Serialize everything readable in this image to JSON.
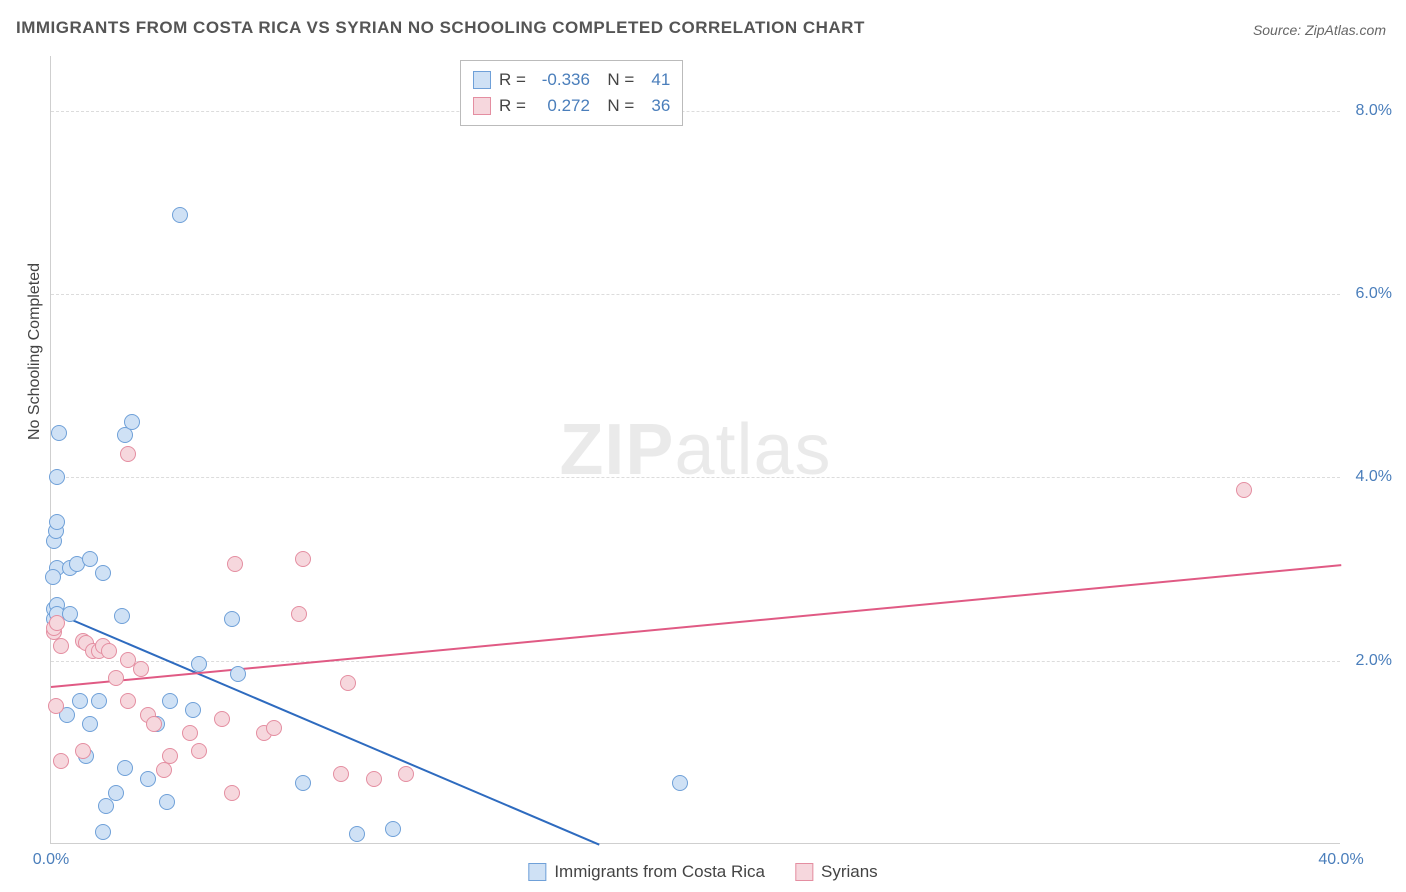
{
  "title": "IMMIGRANTS FROM COSTA RICA VS SYRIAN NO SCHOOLING COMPLETED CORRELATION CHART",
  "source": "Source: ZipAtlas.com",
  "ylabel": "No Schooling Completed",
  "watermark": {
    "bold": "ZIP",
    "thin": "atlas"
  },
  "chart": {
    "type": "scatter",
    "xlim": [
      0,
      40
    ],
    "ylim": [
      0,
      8.6
    ],
    "xticks": [
      {
        "v": 0,
        "l": "0.0%"
      },
      {
        "v": 40,
        "l": "40.0%"
      }
    ],
    "yticks": [
      {
        "v": 2,
        "l": "2.0%"
      },
      {
        "v": 4,
        "l": "4.0%"
      },
      {
        "v": 6,
        "l": "6.0%"
      },
      {
        "v": 8,
        "l": "8.0%"
      }
    ],
    "grid_color": "#dcdcdc",
    "background_color": "#ffffff",
    "marker_radius": 8,
    "series": [
      {
        "name": "Immigrants from Costa Rica",
        "fill": "#cfe1f5",
        "stroke": "#6fa0d8",
        "line_color": "#2e6bbf",
        "R": "-0.336",
        "N": "41",
        "reg": {
          "x1": 0,
          "y1": 2.55,
          "x2": 17,
          "y2": 0
        },
        "points": [
          [
            0.1,
            2.45
          ],
          [
            0.1,
            2.55
          ],
          [
            0.2,
            2.6
          ],
          [
            0.2,
            2.5
          ],
          [
            0.1,
            3.3
          ],
          [
            0.15,
            3.4
          ],
          [
            0.2,
            3.5
          ],
          [
            0.2,
            3.0
          ],
          [
            0.6,
            2.5
          ],
          [
            0.6,
            3.0
          ],
          [
            0.8,
            3.05
          ],
          [
            1.2,
            3.1
          ],
          [
            1.6,
            2.95
          ],
          [
            2.2,
            2.48
          ],
          [
            0.2,
            4.0
          ],
          [
            0.25,
            4.48
          ],
          [
            2.3,
            4.45
          ],
          [
            2.5,
            4.6
          ],
          [
            1.6,
            0.12
          ],
          [
            1.7,
            0.4
          ],
          [
            2.0,
            0.55
          ],
          [
            2.3,
            0.82
          ],
          [
            3.0,
            0.7
          ],
          [
            3.3,
            1.3
          ],
          [
            3.6,
            0.45
          ],
          [
            3.7,
            1.55
          ],
          [
            4.4,
            1.45
          ],
          [
            4.6,
            1.95
          ],
          [
            5.6,
            2.45
          ],
          [
            5.8,
            1.85
          ],
          [
            7.8,
            0.65
          ],
          [
            9.5,
            0.1
          ],
          [
            10.6,
            0.15
          ],
          [
            0.9,
            1.55
          ],
          [
            1.2,
            1.3
          ],
          [
            1.5,
            1.55
          ],
          [
            1.1,
            0.95
          ],
          [
            0.5,
            1.4
          ],
          [
            4.0,
            6.85
          ],
          [
            19.5,
            0.65
          ],
          [
            0.05,
            2.9
          ]
        ]
      },
      {
        "name": "Syrians",
        "fill": "#f6d7dd",
        "stroke": "#e48ea1",
        "line_color": "#e05a84",
        "R": "0.272",
        "N": "36",
        "reg": {
          "x1": 0,
          "y1": 1.72,
          "x2": 40,
          "y2": 3.05
        },
        "points": [
          [
            0.1,
            2.3
          ],
          [
            0.1,
            2.35
          ],
          [
            0.2,
            2.4
          ],
          [
            0.3,
            2.15
          ],
          [
            0.15,
            1.5
          ],
          [
            0.3,
            0.9
          ],
          [
            1.0,
            2.2
          ],
          [
            1.1,
            2.18
          ],
          [
            1.3,
            2.1
          ],
          [
            1.5,
            2.1
          ],
          [
            1.6,
            2.15
          ],
          [
            1.8,
            2.1
          ],
          [
            2.0,
            1.8
          ],
          [
            2.4,
            1.55
          ],
          [
            2.4,
            2.0
          ],
          [
            2.8,
            1.9
          ],
          [
            3.0,
            1.4
          ],
          [
            3.2,
            1.3
          ],
          [
            3.5,
            0.8
          ],
          [
            3.7,
            0.95
          ],
          [
            4.3,
            1.2
          ],
          [
            4.6,
            1.0
          ],
          [
            5.3,
            1.35
          ],
          [
            5.6,
            0.55
          ],
          [
            5.7,
            3.05
          ],
          [
            6.6,
            1.2
          ],
          [
            6.9,
            1.25
          ],
          [
            7.7,
            2.5
          ],
          [
            7.8,
            3.1
          ],
          [
            9.0,
            0.75
          ],
          [
            9.2,
            1.75
          ],
          [
            10.0,
            0.7
          ],
          [
            11.0,
            0.75
          ],
          [
            37.0,
            3.85
          ],
          [
            2.4,
            4.25
          ],
          [
            1.0,
            1.0
          ]
        ]
      }
    ]
  },
  "legend": {
    "items": [
      {
        "label": "Immigrants from Costa Rica",
        "fill": "#cfe1f5",
        "stroke": "#6fa0d8"
      },
      {
        "label": "Syrians",
        "fill": "#f6d7dd",
        "stroke": "#e48ea1"
      }
    ]
  }
}
